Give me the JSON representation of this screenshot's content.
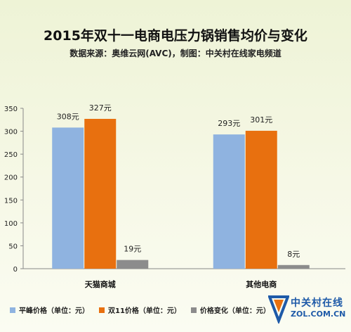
{
  "title": "2015年双十一电商电压力锅销售均价与变化",
  "subtitle": "数据来源：奥维云网(AVC)，制图：中关村在线家电频道",
  "chart_data": {
    "type": "bar",
    "categories": [
      "天猫商城",
      "其他电商"
    ],
    "series": [
      {
        "name": "平峰价格（单位：元）",
        "values": [
          308,
          293
        ],
        "labels": [
          "308元",
          "293元"
        ],
        "color": "#8fb3e0"
      },
      {
        "name": "双11价格（单位：元）",
        "values": [
          327,
          301
        ],
        "labels": [
          "327元",
          "301元"
        ],
        "color": "#e8700f"
      },
      {
        "name": "价格变化（单位：元）",
        "values": [
          19,
          8
        ],
        "labels": [
          "19元",
          "8元"
        ],
        "color": "#8c8c8c"
      }
    ],
    "ylim": [
      0,
      350
    ],
    "yticks": [
      0,
      50,
      100,
      150,
      200,
      250,
      300,
      350
    ],
    "grid": false,
    "legend_position": "bottom"
  },
  "logo": {
    "brand": "中关村在线",
    "site": "ZOL.COM.CN"
  }
}
